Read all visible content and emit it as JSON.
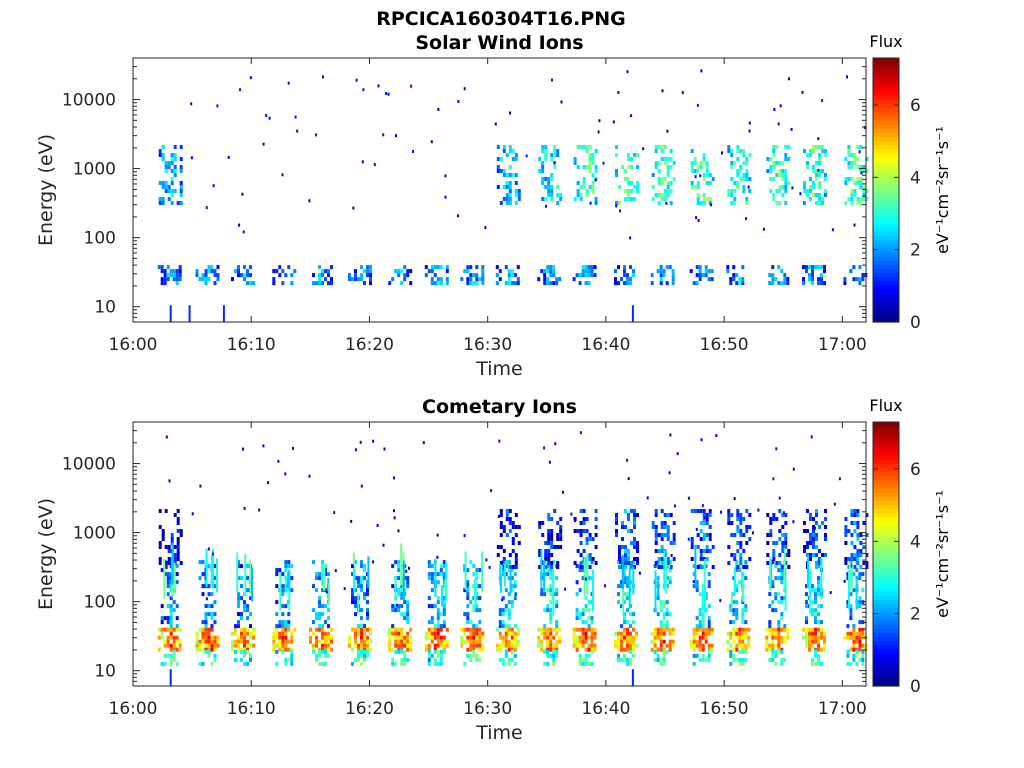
{
  "figure": {
    "title": "RPCICA160304T16.PNG"
  },
  "chart_data": [
    {
      "type": "heatmap",
      "title": "Solar Wind Ions",
      "xlabel": "Time",
      "ylabel": "Energy (eV)",
      "xticks": [
        "16:00",
        "16:10",
        "16:20",
        "16:30",
        "16:40",
        "16:50",
        "17:00"
      ],
      "xlim": [
        "16:00",
        "17:02"
      ],
      "yscale": "log",
      "yticks": [
        "10",
        "100",
        "1000",
        "10000"
      ],
      "ylim": [
        6,
        40000
      ],
      "colorbar": {
        "title": "Flux",
        "label": "eV⁻¹cm⁻²sr⁻¹s⁻¹",
        "range": [
          0,
          7.3
        ],
        "ticks": [
          "0",
          "2",
          "4",
          "6"
        ],
        "colormap": "jet"
      },
      "sweep_times_min": [
        3.1,
        6.3,
        9.3,
        12.8,
        15.9,
        19.2,
        22.6,
        25.7,
        28.7,
        31.7,
        35.2,
        38.2,
        41.7,
        44.8,
        48.1,
        51.2,
        54.5,
        57.6,
        61.1
      ],
      "bands": [
        {
          "energy_min": 22,
          "energy_max": 40,
          "flux": [
            2.1,
            2.2,
            2.1,
            2.0,
            2.2,
            2.0,
            2.0,
            2.3,
            2.1,
            2.2,
            2.0,
            2.1,
            2.2,
            2.1,
            2.0,
            2.1,
            2.0,
            2.2,
            2.1
          ]
        },
        {
          "energy_min": 300,
          "energy_max": 2200,
          "flux": [
            2.5,
            0,
            0,
            0,
            0,
            0,
            0,
            0,
            0,
            2.6,
            2.8,
            3.4,
            3.6,
            3.4,
            3.5,
            3.3,
            3.4,
            3.3,
            3.5
          ]
        }
      ],
      "scatter": {
        "energy_range": [
          90,
          30000
        ],
        "flux": 1.1,
        "time_range": [
          "16:02",
          "17:02"
        ]
      }
    },
    {
      "type": "heatmap",
      "title": "Cometary Ions",
      "xlabel": "Time",
      "ylabel": "Energy (eV)",
      "xticks": [
        "16:00",
        "16:10",
        "16:20",
        "16:30",
        "16:40",
        "16:50",
        "17:00"
      ],
      "xlim": [
        "16:00",
        "17:02"
      ],
      "yscale": "log",
      "yticks": [
        "10",
        "100",
        "1000",
        "10000"
      ],
      "ylim": [
        6,
        40000
      ],
      "colorbar": {
        "title": "Flux",
        "label": "eV⁻¹cm⁻²sr⁻¹s⁻¹",
        "range": [
          0,
          7.3
        ],
        "ticks": [
          "0",
          "2",
          "4",
          "6"
        ],
        "colormap": "jet"
      },
      "sweep_times_min": [
        3.1,
        6.3,
        9.3,
        12.8,
        15.9,
        19.2,
        22.6,
        25.7,
        28.7,
        31.7,
        35.2,
        38.2,
        41.7,
        44.8,
        48.1,
        51.2,
        54.5,
        57.6,
        61.1
      ],
      "bands": [
        {
          "energy_min": 20,
          "energy_max": 42,
          "flux": [
            5.3,
            5.4,
            5.2,
            5.6,
            5.5,
            5.4,
            5.3,
            5.6,
            5.4,
            5.2,
            5.3,
            5.5,
            5.4,
            5.6,
            5.3,
            5.2,
            5.4,
            5.3,
            5.5
          ]
        },
        {
          "energy_min": 12,
          "energy_max": 20,
          "flux": [
            3.3,
            3.4,
            3.2,
            3.4,
            3.3,
            3.2,
            3.4,
            3.3,
            3.4,
            3.2,
            3.3,
            3.4,
            3.3,
            3.4,
            3.2,
            3.3,
            3.4,
            3.3,
            3.2
          ]
        },
        {
          "energy_min": 45,
          "energy_max": 400,
          "flux": [
            2.0,
            2.1,
            2.0,
            2.2,
            2.3,
            2.2,
            2.4,
            2.5,
            2.6,
            2.7,
            2.8,
            2.8,
            2.8,
            2.9,
            2.7,
            2.7,
            2.6,
            2.6,
            2.5
          ]
        },
        {
          "energy_min": 300,
          "energy_max": 2200,
          "flux": [
            1.1,
            0,
            0,
            0,
            0,
            0,
            0,
            0,
            0,
            1.2,
            1.3,
            1.6,
            1.9,
            1.8,
            1.7,
            1.6,
            1.6,
            1.7,
            1.8
          ]
        }
      ],
      "scatter": {
        "energy_range": [
          90,
          30000
        ],
        "flux": 1.1,
        "time_range": [
          "16:02",
          "17:02"
        ]
      }
    }
  ]
}
